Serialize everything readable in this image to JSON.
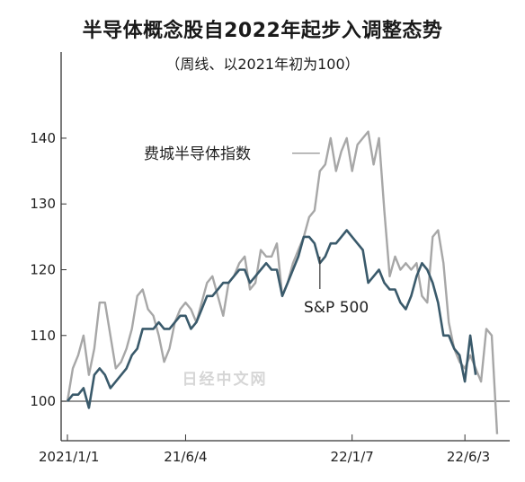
{
  "chart_data": {
    "type": "line",
    "title": "半导体概念股自2022年起步入调整态势",
    "subtitle": "（周线、以2021年初为100）",
    "ylim": [
      94,
      149
    ],
    "yticks": [
      100,
      110,
      120,
      130,
      140
    ],
    "ytick_labels": [
      "100",
      "110",
      "120",
      "130",
      "140"
    ],
    "xticks": [
      {
        "index": 0,
        "label": "2021/1/1"
      },
      {
        "index": 22,
        "label": "21/6/4"
      },
      {
        "index": 53,
        "label": "22/1/7"
      },
      {
        "index": 74,
        "label": "22/6/3"
      }
    ],
    "baseline": 100,
    "series": [
      {
        "name": "费城半导体指数",
        "color": "#a7a7a7",
        "values": [
          100,
          105,
          107,
          110,
          104,
          108,
          115,
          115,
          110,
          105,
          106,
          108,
          111,
          116,
          117,
          114,
          113,
          110,
          106,
          108,
          112,
          114,
          115,
          114,
          112,
          115,
          118,
          119,
          116,
          113,
          118,
          119,
          121,
          122,
          117,
          118,
          123,
          122,
          122,
          124,
          116,
          118,
          121,
          123,
          125,
          128,
          129,
          135,
          136,
          140,
          135,
          138,
          140,
          135,
          139,
          140,
          141,
          136,
          140,
          129,
          119,
          122,
          120,
          121,
          120,
          121,
          116,
          115,
          125,
          126,
          121,
          112,
          108,
          106,
          105,
          107,
          105,
          103,
          111,
          110,
          95
        ]
      },
      {
        "name": "S&P 500",
        "color": "#3a5a6b",
        "values": [
          100,
          101,
          101,
          102,
          99,
          104,
          105,
          104,
          102,
          103,
          104,
          105,
          107,
          108,
          111,
          111,
          111,
          112,
          111,
          111,
          112,
          113,
          113,
          111,
          112,
          114,
          116,
          116,
          117,
          118,
          118,
          119,
          120,
          120,
          118,
          119,
          120,
          121,
          120,
          120,
          116,
          118,
          120,
          122,
          125,
          125,
          124,
          121,
          122,
          124,
          124,
          125,
          126,
          125,
          124,
          123,
          118,
          119,
          120,
          118,
          117,
          117,
          115,
          114,
          116,
          119,
          121,
          120,
          118,
          115,
          110,
          110,
          108,
          107,
          103,
          110,
          104
        ]
      }
    ],
    "annotations": [
      {
        "text": "费城半导体指数",
        "series": 0
      },
      {
        "text": "S&P 500",
        "series": 1
      }
    ],
    "watermark": "日经中文网",
    "grid": false
  }
}
